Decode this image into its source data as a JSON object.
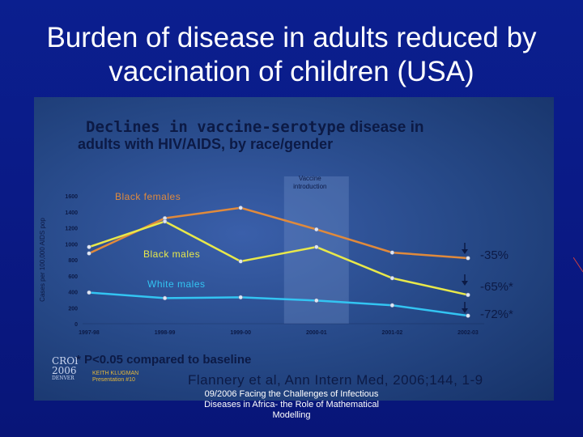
{
  "slide": {
    "title": "Burden of disease in adults reduced by vaccination of children (USA)",
    "footer": "09/2006 Facing the Challenges of Infectious Diseases in Africa- the Role of Mathematical Modelling"
  },
  "figure": {
    "title_line1_a": "Declines in vaccine-serotype",
    "title_line1_b": " disease in",
    "title_line2": "adults with HIV/AIDS, by race/gender",
    "significance_note": "* P<0.05 compared to baseline",
    "citation": "Flannery et al, Ann Intern Med, 2006;144, 1-9",
    "conference_logo": [
      "CROI",
      "2006",
      "DENVER"
    ],
    "presenter": [
      "KEITH KLUGMAN",
      "Presentation #10"
    ]
  },
  "chart_data": {
    "type": "line",
    "title": "",
    "xlabel": "",
    "ylabel": "Cases per 100,000 AIDS pop",
    "categories": [
      "1997-98",
      "1998-99",
      "1999-00",
      "2000-01",
      "2001-02",
      "2002-03"
    ],
    "ylim": [
      0,
      1600
    ],
    "yticks": [
      0,
      200,
      400,
      600,
      800,
      1000,
      1200,
      1400,
      1600
    ],
    "shaded_region": {
      "label": "Vaccine introduction",
      "from": "2000-01",
      "to": "2000-01"
    },
    "series": [
      {
        "name": "Black females",
        "color": "#e08a3c",
        "values": [
          880,
          1320,
          1450,
          1180,
          890,
          820
        ],
        "change": "-35%"
      },
      {
        "name": "Black males",
        "color": "#e8e84a",
        "values": [
          960,
          1280,
          780,
          960,
          570,
          360
        ],
        "change": "-65%*"
      },
      {
        "name": "White males",
        "color": "#33c4f2",
        "values": [
          390,
          320,
          330,
          290,
          230,
          100
        ],
        "change": "-72%*"
      }
    ],
    "grid": false,
    "legend": "inline labels"
  }
}
